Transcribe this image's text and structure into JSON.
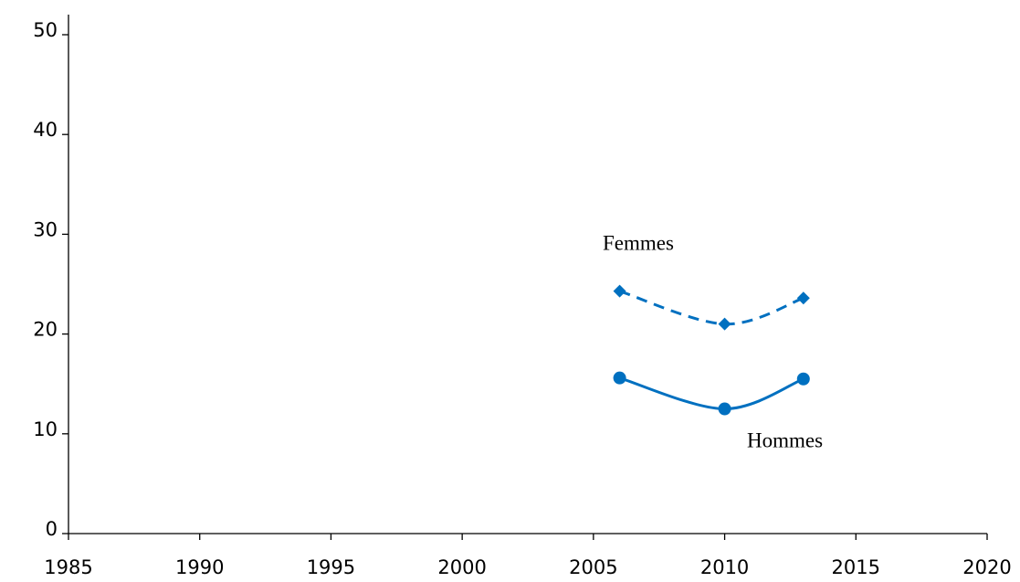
{
  "chart_data": {
    "type": "line",
    "x": [
      2006,
      2010,
      2013
    ],
    "series": [
      {
        "name": "Femmes",
        "color": "#0070c0",
        "line_style": "dashed",
        "marker": "diamond",
        "values": [
          24.3,
          21.0,
          23.6
        ]
      },
      {
        "name": "Hommes",
        "color": "#0070c0",
        "line_style": "solid",
        "marker": "circle",
        "values": [
          15.6,
          12.5,
          15.5
        ]
      }
    ],
    "xlim": [
      1985,
      2020
    ],
    "xticks": [
      1985,
      1990,
      1995,
      2000,
      2005,
      2010,
      2015,
      2020
    ],
    "ylim": [
      0,
      50
    ],
    "yticks": [
      0,
      10,
      20,
      30,
      40,
      50
    ],
    "smooth": true,
    "grid": false
  }
}
